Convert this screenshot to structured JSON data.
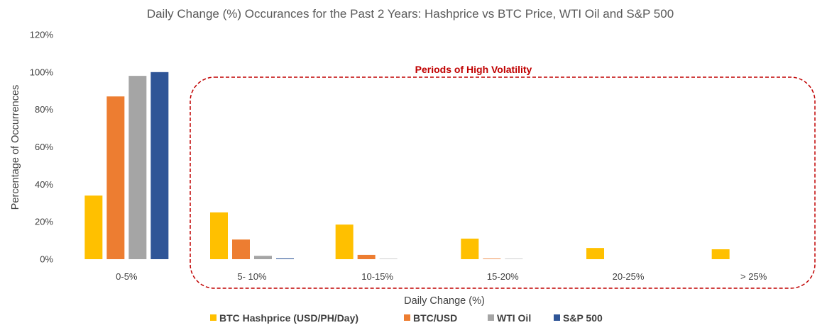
{
  "chart_data": {
    "type": "bar",
    "title": "Daily Change (%) Occurances for the Past 2 Years: Hashprice vs BTC Price, WTI Oil and S&P 500",
    "xlabel": "Daily Change (%)",
    "ylabel": "Percentage of Occurrences",
    "categories": [
      "0-5%",
      "5- 10%",
      "10-15%",
      "15-20%",
      "20-25%",
      "> 25%"
    ],
    "ylim": [
      0,
      120
    ],
    "yticks": [
      "0%",
      "20%",
      "40%",
      "60%",
      "80%",
      "100%",
      "120%"
    ],
    "grid": false,
    "legend_position": "bottom",
    "series": [
      {
        "name": "BTC Hashprice (USD/PH/Day)",
        "color": "#FFC000",
        "values": [
          34,
          25,
          18.5,
          11,
          6,
          5.3
        ]
      },
      {
        "name": "BTC/USD",
        "color": "#ED7D31",
        "values": [
          87,
          10.5,
          2.3,
          0.3,
          0,
          0
        ]
      },
      {
        "name": "WTI Oil",
        "color": "#A5A5A5",
        "values": [
          98,
          1.8,
          0.2,
          0.2,
          0,
          0
        ]
      },
      {
        "name": "S&P 500",
        "color": "#2F5597",
        "values": [
          100,
          0.4,
          0,
          0,
          0,
          0
        ]
      }
    ],
    "annotation": {
      "text": "Periods of High Volatility",
      "color": "#C00000"
    }
  }
}
